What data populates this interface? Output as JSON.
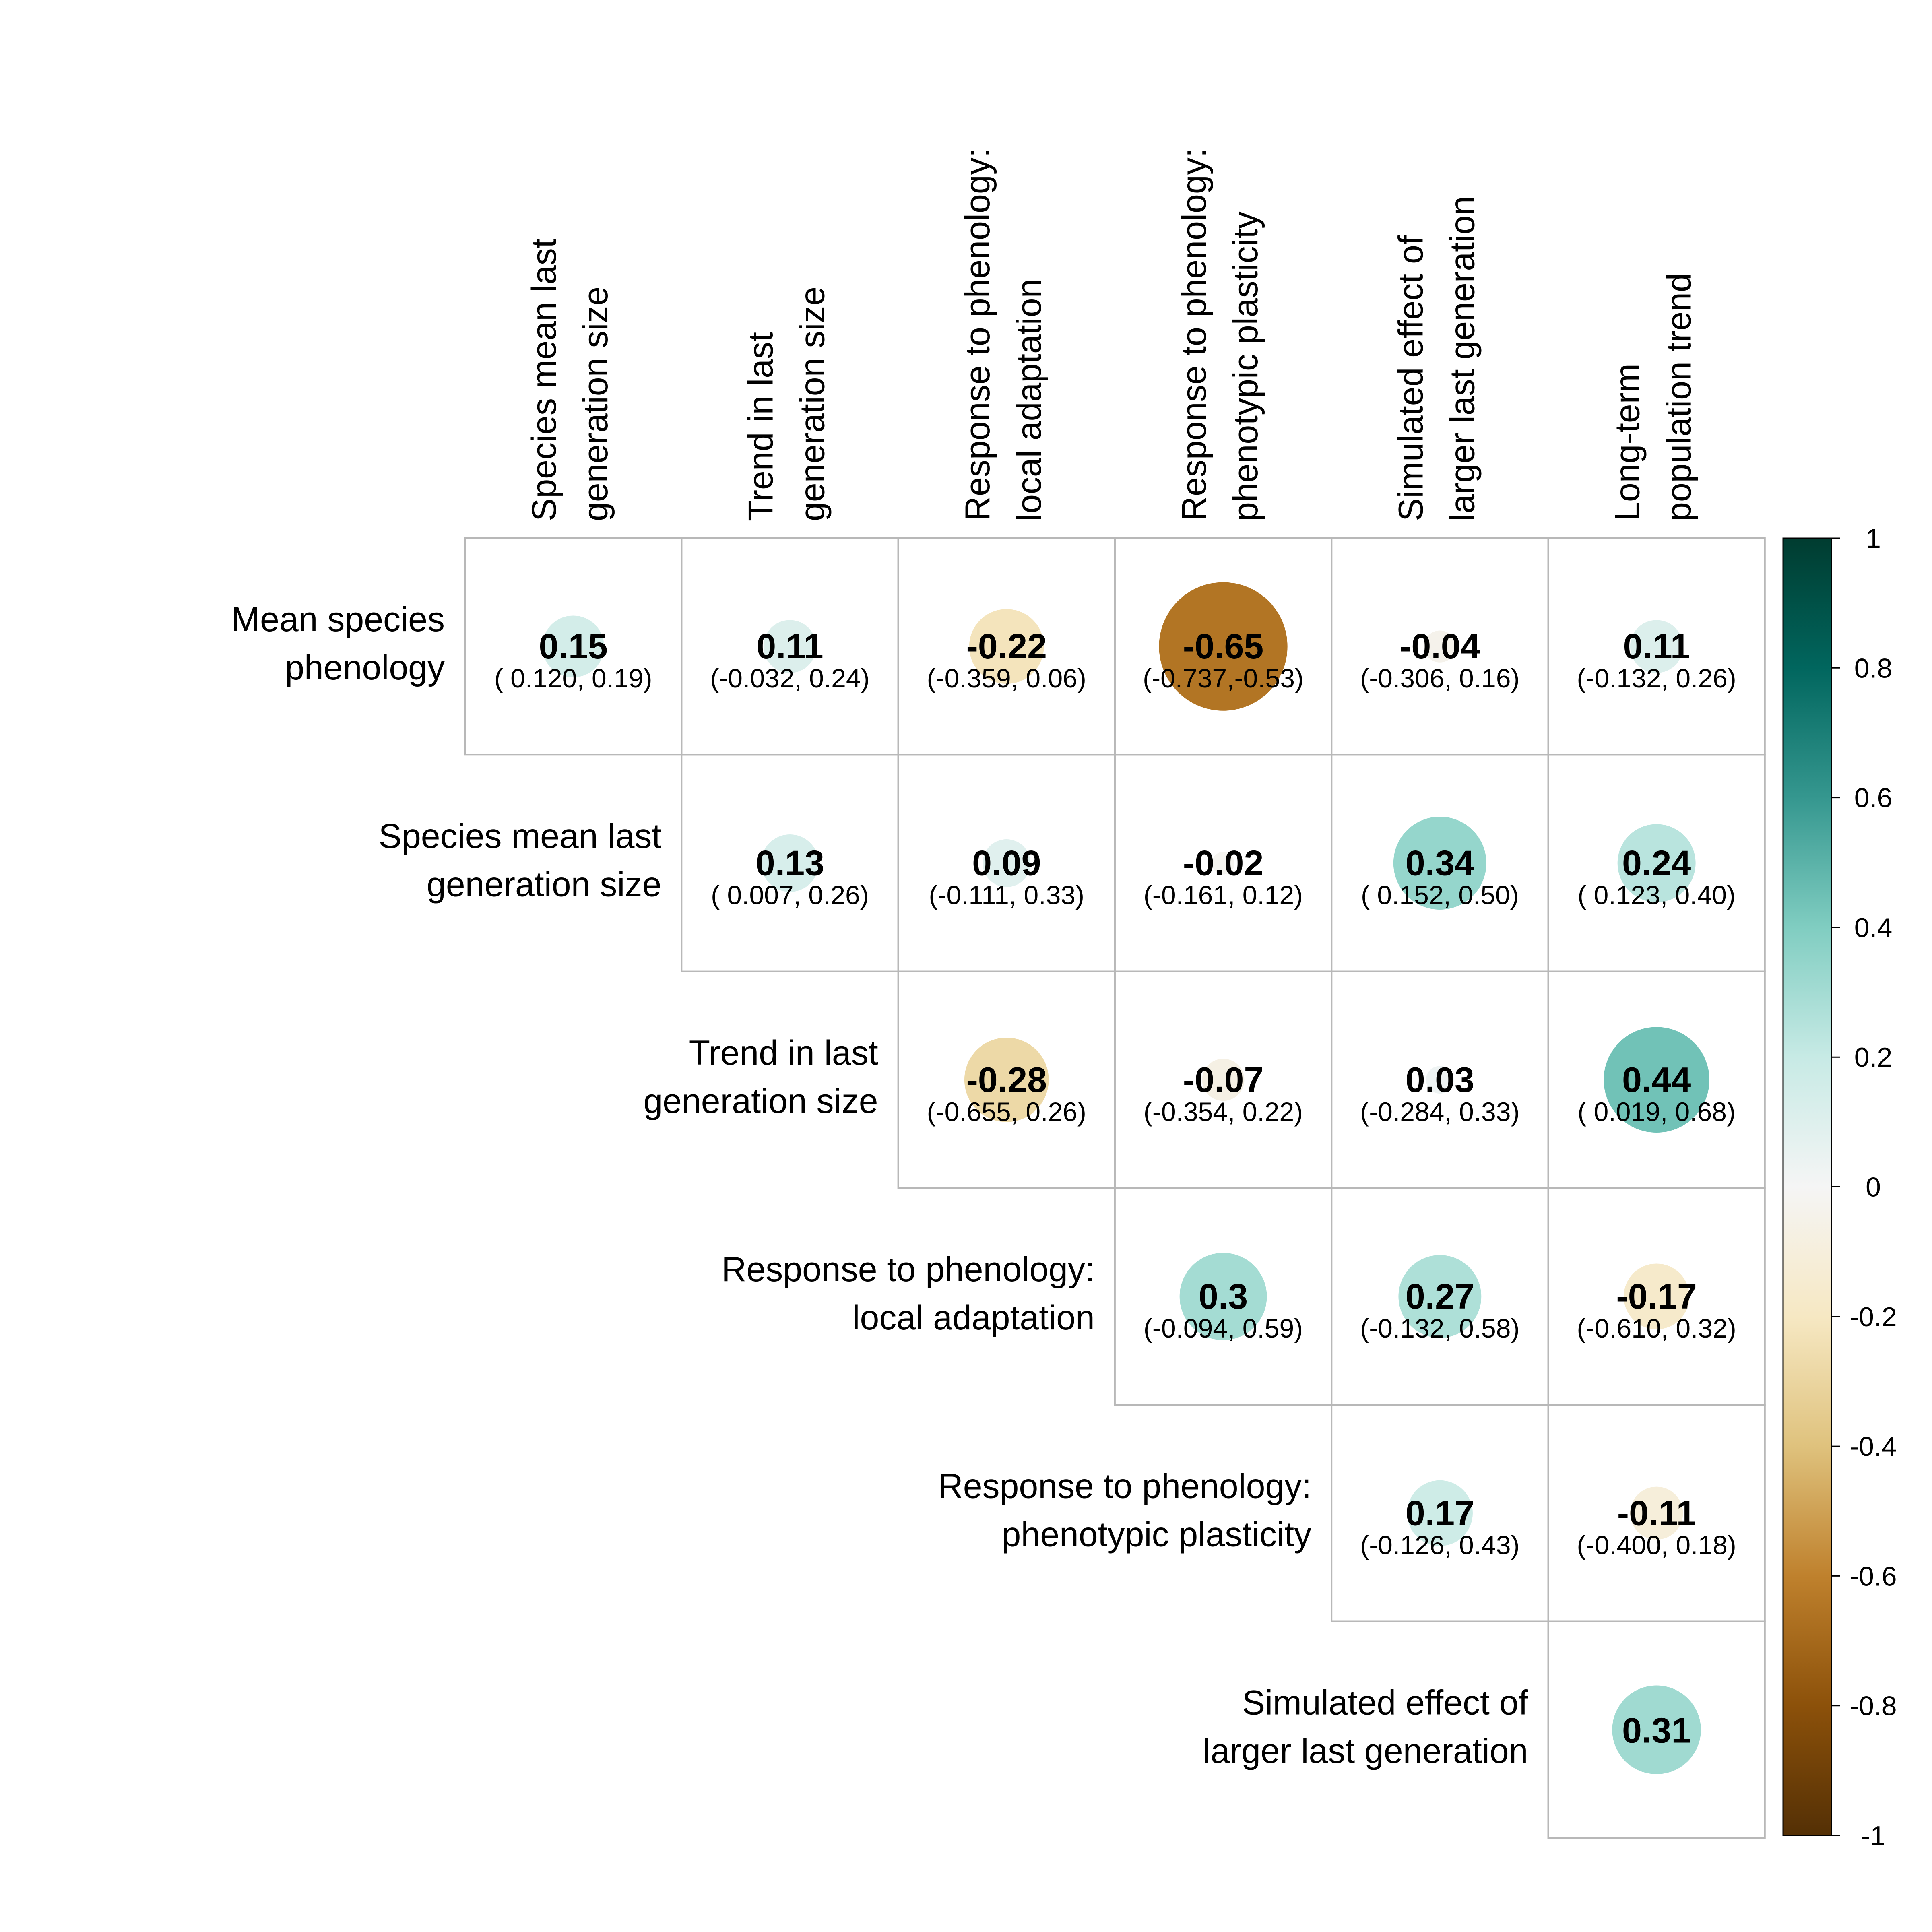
{
  "chart_data": {
    "type": "heatmap",
    "variant": "upper-triangular correlation matrix with sized circles",
    "columns": [
      [
        "Species mean last",
        "generation size"
      ],
      [
        "Trend in last",
        "generation size"
      ],
      [
        "Response to phenology:",
        "local adaptation"
      ],
      [
        "Response to phenology:",
        "phenotypic plasticity"
      ],
      [
        "Simulated effect of",
        "larger last generation"
      ],
      [
        "Long-term",
        "population trend"
      ]
    ],
    "rows": [
      [
        "Mean species",
        "phenology"
      ],
      [
        "Species mean last",
        "generation size"
      ],
      [
        "Trend in last",
        "generation size"
      ],
      [
        "Response to phenology:",
        "local adaptation"
      ],
      [
        "Response to phenology:",
        "phenotypic plasticity"
      ],
      [
        "Simulated effect of",
        "larger last generation"
      ]
    ],
    "cells": [
      {
        "row": 0,
        "col": 0,
        "value": 0.15,
        "label": "0.15",
        "ci": "( 0.120, 0.19)"
      },
      {
        "row": 0,
        "col": 1,
        "value": 0.11,
        "label": "0.11",
        "ci": "(-0.032, 0.24)"
      },
      {
        "row": 0,
        "col": 2,
        "value": -0.22,
        "label": "-0.22",
        "ci": "(-0.359, 0.06)"
      },
      {
        "row": 0,
        "col": 3,
        "value": -0.65,
        "label": "-0.65",
        "ci": "(-0.737,-0.53)"
      },
      {
        "row": 0,
        "col": 4,
        "value": -0.04,
        "label": "-0.04",
        "ci": "(-0.306, 0.16)"
      },
      {
        "row": 0,
        "col": 5,
        "value": 0.11,
        "label": "0.11",
        "ci": "(-0.132, 0.26)"
      },
      {
        "row": 1,
        "col": 1,
        "value": 0.13,
        "label": "0.13",
        "ci": "( 0.007, 0.26)"
      },
      {
        "row": 1,
        "col": 2,
        "value": 0.09,
        "label": "0.09",
        "ci": "(-0.111, 0.33)"
      },
      {
        "row": 1,
        "col": 3,
        "value": -0.02,
        "label": "-0.02",
        "ci": "(-0.161, 0.12)"
      },
      {
        "row": 1,
        "col": 4,
        "value": 0.34,
        "label": "0.34",
        "ci": "( 0.152, 0.50)"
      },
      {
        "row": 1,
        "col": 5,
        "value": 0.24,
        "label": "0.24",
        "ci": "( 0.123, 0.40)"
      },
      {
        "row": 2,
        "col": 2,
        "value": -0.28,
        "label": "-0.28",
        "ci": "(-0.655, 0.26)"
      },
      {
        "row": 2,
        "col": 3,
        "value": -0.07,
        "label": "-0.07",
        "ci": "(-0.354, 0.22)"
      },
      {
        "row": 2,
        "col": 4,
        "value": 0.03,
        "label": "0.03",
        "ci": "(-0.284, 0.33)"
      },
      {
        "row": 2,
        "col": 5,
        "value": 0.44,
        "label": "0.44",
        "ci": "( 0.019, 0.68)"
      },
      {
        "row": 3,
        "col": 3,
        "value": 0.3,
        "label": "0.3",
        "ci": "(-0.094, 0.59)"
      },
      {
        "row": 3,
        "col": 4,
        "value": 0.27,
        "label": "0.27",
        "ci": "(-0.132, 0.58)"
      },
      {
        "row": 3,
        "col": 5,
        "value": -0.17,
        "label": "-0.17",
        "ci": "(-0.610, 0.32)"
      },
      {
        "row": 4,
        "col": 4,
        "value": 0.17,
        "label": "0.17",
        "ci": "(-0.126, 0.43)"
      },
      {
        "row": 4,
        "col": 5,
        "value": -0.11,
        "label": "-0.11",
        "ci": "(-0.400, 0.18)"
      },
      {
        "row": 5,
        "col": 5,
        "value": 0.31,
        "label": "0.31",
        "ci": ""
      }
    ],
    "colorbar": {
      "range": [
        -1,
        1
      ],
      "ticks": [
        "1",
        "0.8",
        "0.6",
        "0.4",
        "0.2",
        "0",
        "-0.2",
        "-0.4",
        "-0.6",
        "-0.8",
        "-1"
      ],
      "tick_values": [
        1,
        0.8,
        0.6,
        0.4,
        0.2,
        0,
        -0.2,
        -0.4,
        -0.6,
        -0.8,
        -1
      ],
      "stops": [
        {
          "v": -1.0,
          "c": "#543005"
        },
        {
          "v": -0.8,
          "c": "#8c510a"
        },
        {
          "v": -0.6,
          "c": "#bf812d"
        },
        {
          "v": -0.4,
          "c": "#dfc27d"
        },
        {
          "v": -0.2,
          "c": "#f6e8c3"
        },
        {
          "v": 0.0,
          "c": "#f5f5f5"
        },
        {
          "v": 0.2,
          "c": "#c7eae5"
        },
        {
          "v": 0.4,
          "c": "#80cdc1"
        },
        {
          "v": 0.6,
          "c": "#35978f"
        },
        {
          "v": 0.8,
          "c": "#01665e"
        },
        {
          "v": 1.0,
          "c": "#003c30"
        }
      ]
    },
    "grid": true,
    "legend": "right"
  }
}
